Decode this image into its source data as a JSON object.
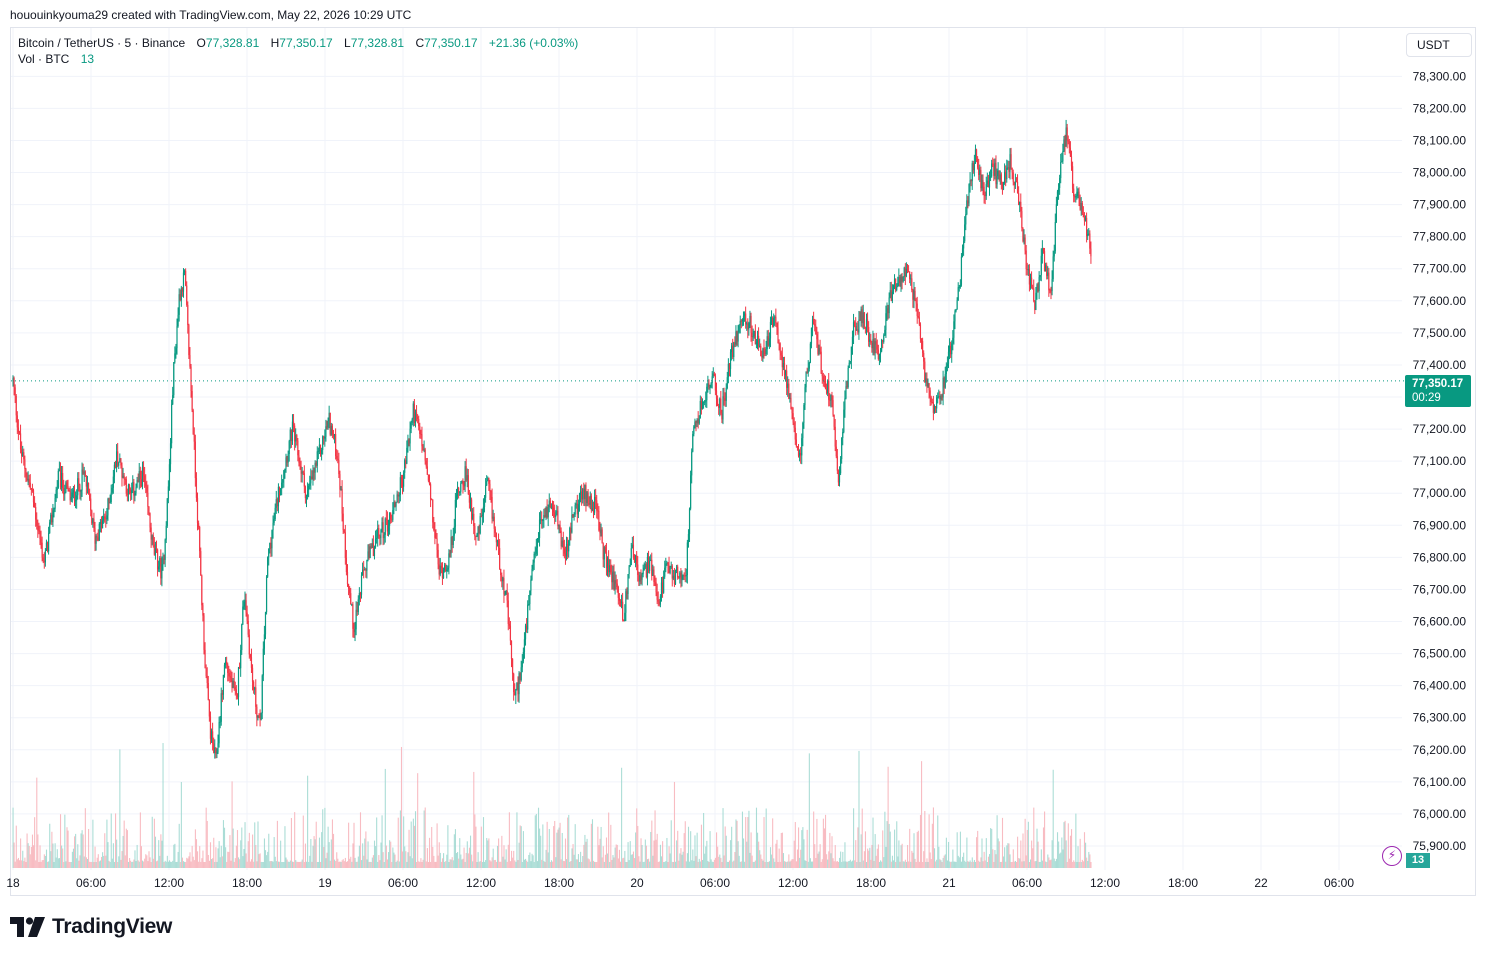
{
  "credit": "hououinkyouma29 created with TradingView.com, May 22, 2026 10:29 UTC",
  "legend": {
    "symbol": "Bitcoin / TetherUS · 5 · Binance",
    "o_label": "O",
    "o_value": "77,328.81",
    "h_label": "H",
    "h_value": "77,350.17",
    "l_label": "L",
    "l_value": "77,328.81",
    "c_label": "C",
    "c_value": "77,350.17",
    "change": "+21.36 (+0.03%)",
    "vol_label": "Vol · BTC",
    "vol_value": "13"
  },
  "currency_button": "USDT",
  "last_price": {
    "value": "77,350.17",
    "countdown": "00:29"
  },
  "volume_tag": "13",
  "logo_text": "TradingView",
  "colors": {
    "up": "#089981",
    "down": "#f23645",
    "grid": "#f0f3fa",
    "axis_text": "#131722"
  },
  "icons": {
    "logo": "tradingview-logo-icon",
    "alert": "lightning-icon"
  },
  "chart_data": {
    "type": "candlestick",
    "title": "Bitcoin / TetherUS · 5 · Binance",
    "y_axis": {
      "ylim": [
        75840,
        78340
      ],
      "ticks": [
        75900,
        76000,
        76100,
        76200,
        76300,
        76400,
        76500,
        76600,
        76700,
        76800,
        76900,
        77000,
        77100,
        77200,
        77300,
        77400,
        77500,
        77600,
        77700,
        77800,
        77900,
        78000,
        78100,
        78200,
        78300
      ],
      "tick_labels": [
        "75,900.00",
        "76,000.00",
        "76,100.00",
        "76,200.00",
        "76,300.00",
        "76,400.00",
        "76,500.00",
        "76,600.00",
        "76,700.00",
        "76,800.00",
        "76,900.00",
        "77,000.00",
        "77,100.00",
        "77,200.00",
        "77,300.00",
        "77,400.00",
        "77,500.00",
        "77,600.00",
        "77,700.00",
        "77,800.00",
        "77,900.00",
        "78,000.00",
        "78,100.00",
        "78,200.00",
        "78,300.00"
      ]
    },
    "x_axis": {
      "range_hours": [
        0,
        83
      ],
      "ticks": [
        0,
        6,
        12,
        18,
        24,
        30,
        36,
        42,
        48,
        54,
        60,
        66,
        72,
        78,
        84,
        90,
        96,
        102
      ],
      "tick_labels": [
        "18",
        "06:00",
        "12:00",
        "18:00",
        "19",
        "06:00",
        "12:00",
        "18:00",
        "20",
        "06:00",
        "12:00",
        "18:00",
        "21",
        "06:00",
        "12:00",
        "18:00",
        "22",
        "06:00"
      ]
    },
    "last_price": 77350.17,
    "series_keypoints": [
      [
        0.0,
        77350
      ],
      [
        0.6,
        77130
      ],
      [
        1.5,
        76990
      ],
      [
        2.4,
        76780
      ],
      [
        3.5,
        77050
      ],
      [
        4.5,
        76980
      ],
      [
        5.5,
        77060
      ],
      [
        6.3,
        76860
      ],
      [
        7.2,
        76930
      ],
      [
        8.0,
        77120
      ],
      [
        9.0,
        76990
      ],
      [
        10.0,
        77060
      ],
      [
        10.8,
        76820
      ],
      [
        11.5,
        76750
      ],
      [
        12.0,
        77050
      ],
      [
        12.3,
        77350
      ],
      [
        12.8,
        77620
      ],
      [
        13.2,
        77680
      ],
      [
        13.8,
        77250
      ],
      [
        14.3,
        76850
      ],
      [
        14.8,
        76450
      ],
      [
        15.2,
        76250
      ],
      [
        15.6,
        76160
      ],
      [
        16.3,
        76480
      ],
      [
        17.2,
        76350
      ],
      [
        17.8,
        76700
      ],
      [
        18.4,
        76420
      ],
      [
        19.0,
        76260
      ],
      [
        19.6,
        76800
      ],
      [
        20.5,
        77020
      ],
      [
        21.5,
        77200
      ],
      [
        22.6,
        76990
      ],
      [
        23.4,
        77100
      ],
      [
        24.3,
        77230
      ],
      [
        25.0,
        77110
      ],
      [
        25.7,
        76750
      ],
      [
        26.2,
        76580
      ],
      [
        27.0,
        76760
      ],
      [
        28.0,
        76860
      ],
      [
        29.0,
        76920
      ],
      [
        30.0,
        77050
      ],
      [
        30.8,
        77260
      ],
      [
        31.5,
        77150
      ],
      [
        32.0,
        77020
      ],
      [
        32.8,
        76750
      ],
      [
        33.6,
        76800
      ],
      [
        34.2,
        77010
      ],
      [
        34.8,
        77060
      ],
      [
        35.7,
        76850
      ],
      [
        36.5,
        77030
      ],
      [
        37.2,
        76850
      ],
      [
        38.0,
        76650
      ],
      [
        38.6,
        76350
      ],
      [
        39.2,
        76480
      ],
      [
        39.8,
        76700
      ],
      [
        40.5,
        76900
      ],
      [
        41.5,
        76980
      ],
      [
        42.5,
        76800
      ],
      [
        43.2,
        76950
      ],
      [
        44.0,
        77000
      ],
      [
        44.8,
        76960
      ],
      [
        45.5,
        76800
      ],
      [
        46.5,
        76700
      ],
      [
        47.0,
        76610
      ],
      [
        47.6,
        76850
      ],
      [
        48.2,
        76720
      ],
      [
        49.0,
        76790
      ],
      [
        49.6,
        76640
      ],
      [
        50.2,
        76760
      ],
      [
        51.0,
        76740
      ],
      [
        51.8,
        76760
      ],
      [
        52.3,
        77180
      ],
      [
        53.0,
        77280
      ],
      [
        53.8,
        77360
      ],
      [
        54.5,
        77250
      ],
      [
        55.2,
        77420
      ],
      [
        56.0,
        77550
      ],
      [
        56.8,
        77520
      ],
      [
        57.6,
        77420
      ],
      [
        58.5,
        77540
      ],
      [
        59.3,
        77400
      ],
      [
        60.0,
        77200
      ],
      [
        60.5,
        77100
      ],
      [
        61.0,
        77350
      ],
      [
        61.6,
        77550
      ],
      [
        62.2,
        77380
      ],
      [
        63.0,
        77290
      ],
      [
        63.5,
        77050
      ],
      [
        64.0,
        77300
      ],
      [
        64.6,
        77500
      ],
      [
        65.3,
        77550
      ],
      [
        66.0,
        77480
      ],
      [
        66.7,
        77440
      ],
      [
        67.4,
        77600
      ],
      [
        68.1,
        77670
      ],
      [
        68.8,
        77680
      ],
      [
        69.5,
        77580
      ],
      [
        70.2,
        77350
      ],
      [
        70.8,
        77280
      ],
      [
        71.5,
        77330
      ],
      [
        72.3,
        77500
      ],
      [
        72.8,
        77640
      ],
      [
        73.3,
        77880
      ],
      [
        74.0,
        78060
      ],
      [
        74.7,
        77920
      ],
      [
        75.3,
        78020
      ],
      [
        76.0,
        77960
      ],
      [
        76.7,
        78040
      ],
      [
        77.3,
        77930
      ],
      [
        78.0,
        77700
      ],
      [
        78.6,
        77580
      ],
      [
        79.2,
        77740
      ],
      [
        79.8,
        77620
      ],
      [
        80.4,
        77950
      ],
      [
        81.0,
        78120
      ],
      [
        81.6,
        77950
      ],
      [
        82.3,
        77870
      ],
      [
        82.9,
        77750
      ],
      [
        83.0,
        77600
      ]
    ]
  }
}
